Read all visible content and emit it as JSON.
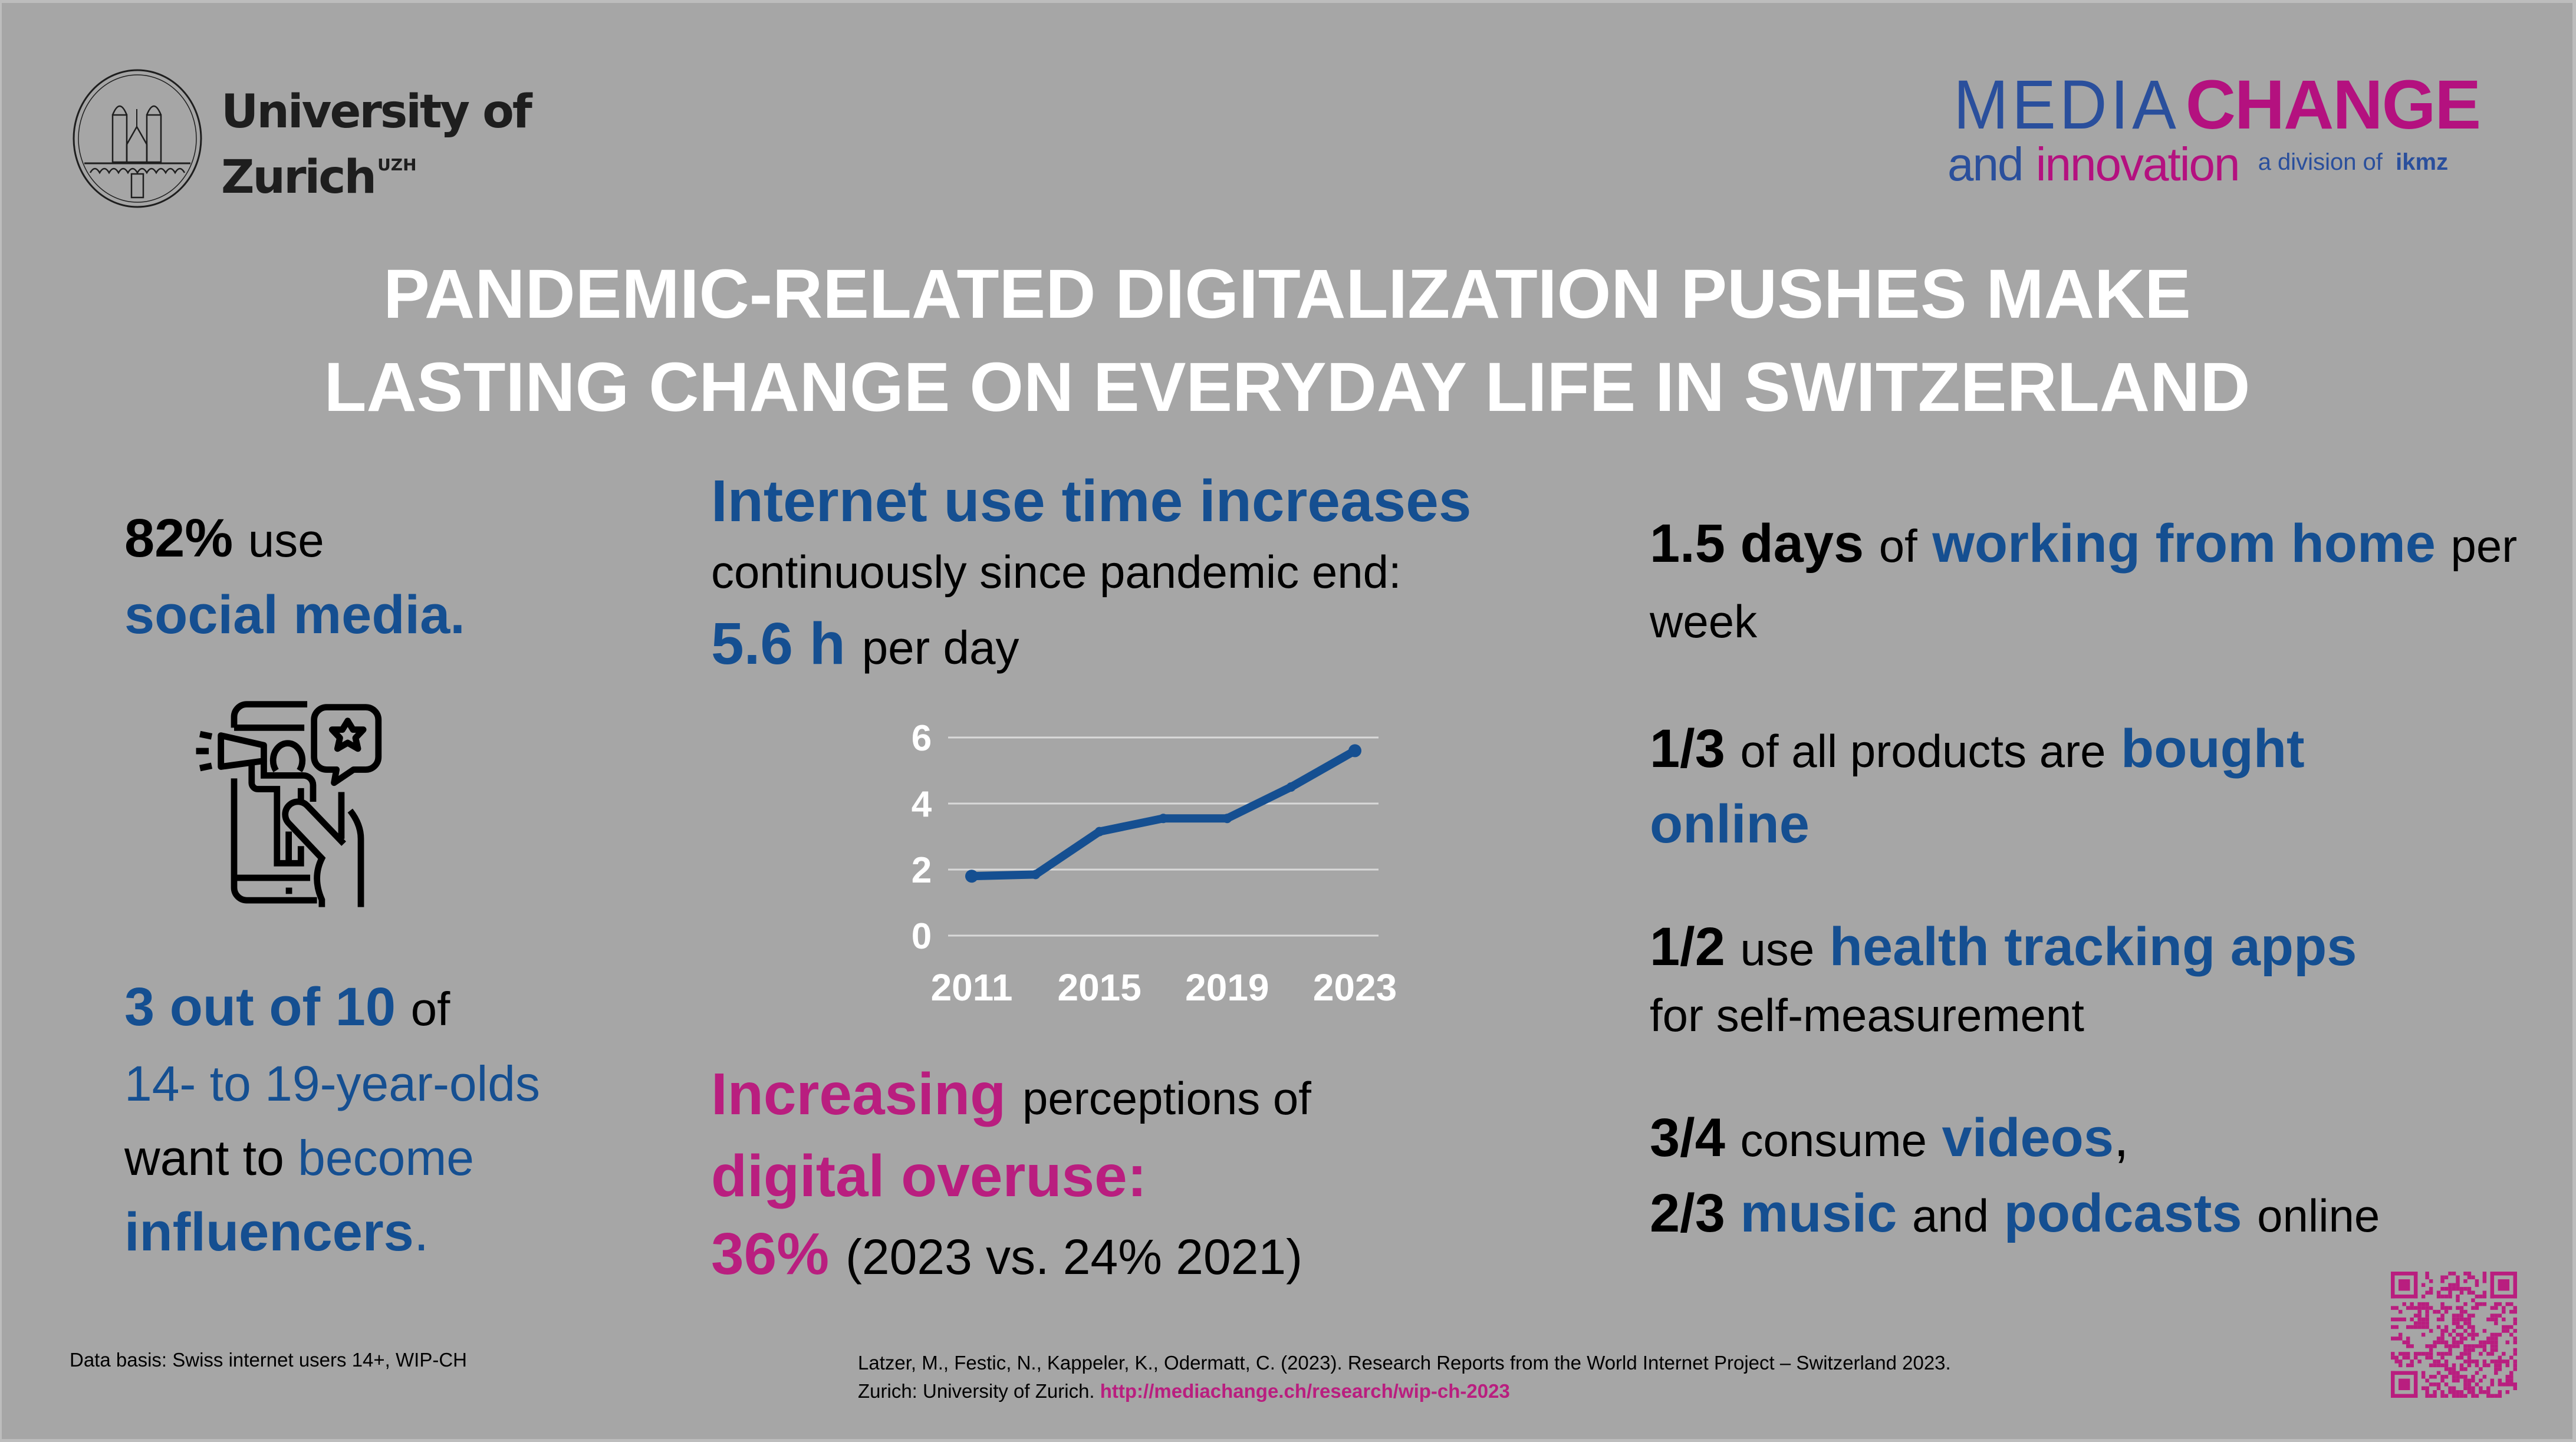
{
  "header": {
    "uzh_logo": {
      "line1": "University of",
      "line2": "Zurich",
      "superscript": "UZH",
      "seal_icon": "university-seal-icon"
    },
    "mediachange_logo": {
      "media": "MEDIA",
      "change": "CHANGE",
      "and": "and",
      "innovation": "innovation",
      "division_of": "a division of",
      "ikmz": "ikmz"
    }
  },
  "title": {
    "line1": "PANDEMIC-RELATED DIGITALIZATION PUSHES MAKE",
    "line2": "LASTING CHANGE ON EVERYDAY LIFE IN SWITZERLAND"
  },
  "left": {
    "social_pct": "82%",
    "social_use": "use",
    "social_media": "social media.",
    "icon": "influencer-phone-megaphone-icon",
    "influencer_count": "3 out of 10",
    "influencer_of": "of",
    "influencer_age": "14- to 19-year-olds",
    "influencer_want": "want to",
    "influencer_become": "become",
    "influencer_word": "influencers",
    "influencer_period": "."
  },
  "middle": {
    "heading": "Internet use time increases",
    "subheading": "continuously since pandemic end:",
    "hours_value": "5.6 h",
    "hours_unit": "per day",
    "overuse_increasing": "Increasing",
    "overuse_perceptions": "perceptions of",
    "overuse_label": "digital overuse:",
    "overuse_value": "36%",
    "overuse_comparison": "(2023 vs. 24% 2021)"
  },
  "chart_data": {
    "type": "line",
    "title": "",
    "xlabel": "",
    "ylabel": "",
    "x": [
      2011,
      2013,
      2015,
      2017,
      2019,
      2021,
      2023
    ],
    "x_tick_labels": [
      "2011",
      "2015",
      "2019",
      "2023"
    ],
    "x_tick_values": [
      2011,
      2015,
      2019,
      2023
    ],
    "y_tick_labels": [
      "0",
      "2",
      "4",
      "6"
    ],
    "y_tick_values": [
      0,
      2,
      4,
      6
    ],
    "ylim": [
      0,
      6
    ],
    "grid": true,
    "legend": "none",
    "series": [
      {
        "name": "Internet use time (hours per day)",
        "values": [
          1.8,
          1.85,
          3.15,
          3.55,
          3.55,
          4.5,
          5.6
        ],
        "color": "#154f91"
      }
    ]
  },
  "right": {
    "stats": [
      {
        "num": "1.5 days",
        "t1": "of",
        "hl": "working from home",
        "t2": "per week"
      },
      {
        "num": "1/3",
        "t1": "of all products are",
        "hl": "bought online",
        "t2": ""
      },
      {
        "num": "1/2",
        "t1": "use",
        "hl": "health tracking apps",
        "t2": "for self-measurement"
      },
      {
        "num": "3/4",
        "t1": "consume",
        "hl": "videos",
        "t2": ","
      },
      {
        "num": "2/3",
        "hl_a": "music",
        "t_and": "and",
        "hl_b": "podcasts",
        "t_end": "online"
      }
    ]
  },
  "footer": {
    "data_basis": "Data basis: Swiss internet users 14+, WIP-CH",
    "citation_line1": "Latzer, M., Festic, N., Kappeler, K., Odermatt, C. (2023). Research Reports from the World Internet Project – Switzerland 2023.",
    "citation_line2_prefix": "Zurich: University of Zurich.",
    "citation_link": "http://mediachange.ch/research/wip-ch-2023",
    "qr_icon": "qr-code-icon"
  },
  "colors": {
    "background": "#a6a6a6",
    "blue": "#154f91",
    "pink": "#b91e7f",
    "title": "#ffffff"
  }
}
